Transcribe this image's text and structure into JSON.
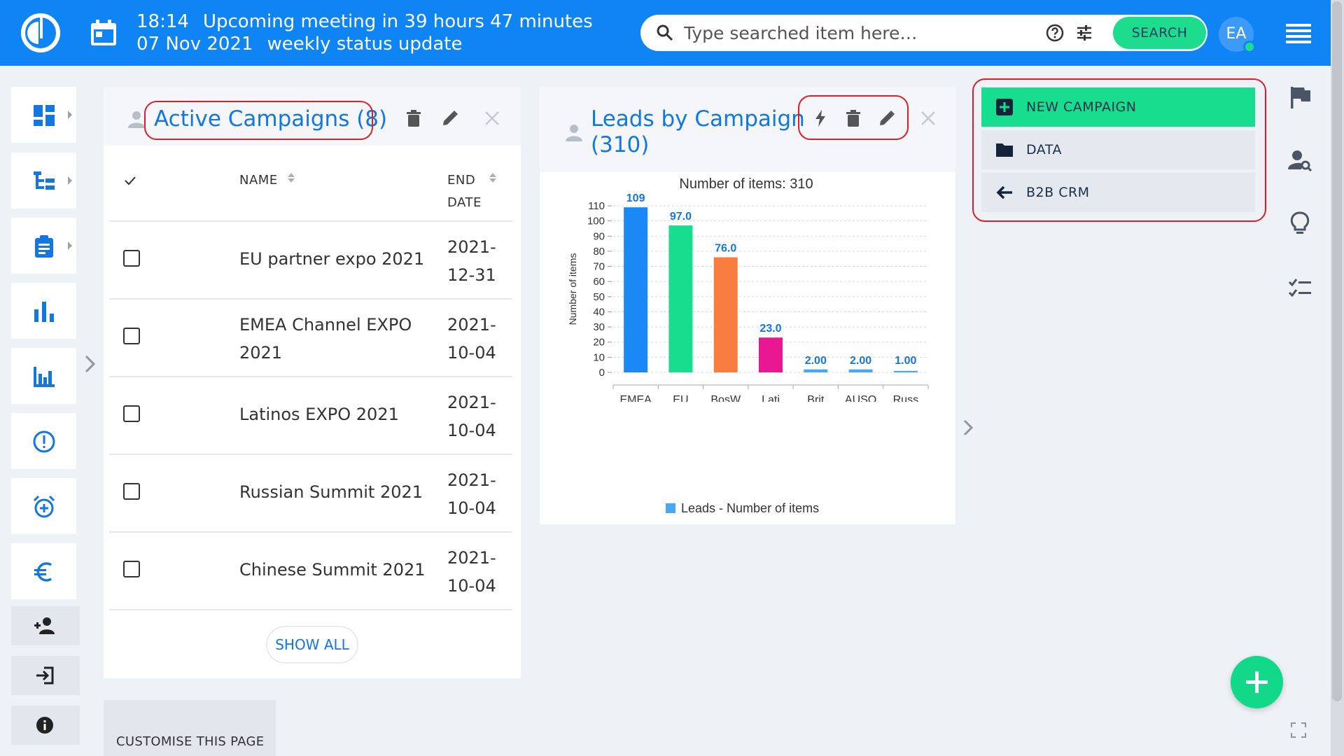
{
  "header": {
    "meeting_time": "18:14",
    "meeting_text": "Upcoming meeting in 39 hours 47 minutes",
    "meeting_date": "07 Nov 2021",
    "meeting_title": "weekly status update",
    "search_placeholder": "Type searched item here…",
    "search_button": "SEARCH",
    "avatar_initials": "EA",
    "status_color": "#1edc8e"
  },
  "left_nav": {
    "items": [
      "dashboard-icon",
      "tree-icon",
      "clipboard-icon",
      "bar-chart-icon",
      "chart-icon",
      "alert-icon",
      "alarm-icon",
      "euro-icon"
    ],
    "small_items": [
      "add-person-icon",
      "login-icon",
      "info-icon"
    ]
  },
  "campaigns_widget": {
    "title": "Active Campaigns (8)",
    "columns": {
      "name": "NAME",
      "end_date_1": "END",
      "end_date_2": "DATE"
    },
    "rows": [
      {
        "name": "EU partner expo 2021",
        "date_1": "2021-",
        "date_2": "12-31"
      },
      {
        "name": "EMEA Channel EXPO 2021",
        "date_1": "2021-",
        "date_2": "10-04"
      },
      {
        "name": "Latinos EXPO 2021",
        "date_1": "2021-",
        "date_2": "10-04"
      },
      {
        "name": "Russian Summit 2021",
        "date_1": "2021-",
        "date_2": "10-04"
      },
      {
        "name": "Chinese Summit 2021",
        "date_1": "2021-",
        "date_2": "10-04"
      }
    ],
    "show_all": "SHOW ALL"
  },
  "leads_widget": {
    "title_line_1": "Leads by Campaign",
    "title_line_2": "(310)"
  },
  "chart_data": {
    "type": "bar",
    "title": "Number of items: 310",
    "categories": [
      "EMEA",
      "EU",
      "BosW",
      "Lati",
      "Brit",
      "AUSO",
      "Russ"
    ],
    "series": [
      {
        "name": "Leads - Number of items",
        "values": [
          109,
          97,
          76,
          23,
          2,
          2,
          1
        ],
        "labels": [
          "109",
          "97.0",
          "76.0",
          "23.0",
          "2.00",
          "2.00",
          "1.00"
        ]
      }
    ],
    "bar_colors": [
      "#1a88f5",
      "#17dd8e",
      "#fb7c40",
      "#e91791",
      "#4ba6f5",
      "#4ba6f5",
      "#4ba6f5"
    ],
    "ylabel": "Number of items",
    "yticks": [
      0,
      10,
      20,
      30,
      40,
      50,
      60,
      70,
      80,
      90,
      100,
      110
    ],
    "ylim": [
      0,
      110
    ],
    "grid": true,
    "legend": "bottom"
  },
  "actions": [
    {
      "label": "NEW CAMPAIGN",
      "icon": "plus-box-icon",
      "color": "#17dd8e"
    },
    {
      "label": "DATA",
      "icon": "folder-icon",
      "color": "#e4e8ef"
    },
    {
      "label": "B2B CRM",
      "icon": "arrow-left-icon",
      "color": "#e4e8ef"
    }
  ],
  "right_nav": [
    "flag-icon",
    "person-search-icon",
    "lightbulb-icon",
    "checklist-icon"
  ],
  "customise_label": "CUSTOMISE THIS PAGE",
  "highlight_color": "#e11d2a"
}
